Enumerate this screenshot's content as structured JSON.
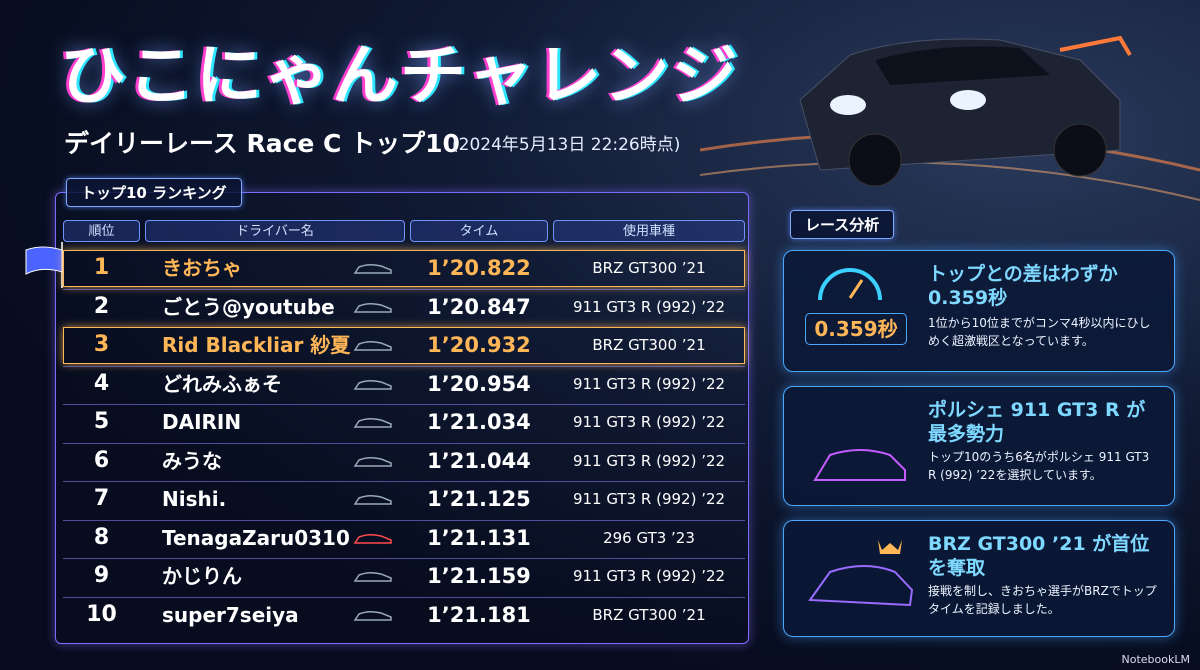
{
  "header": {
    "title": "ひこにゃんチャレンジ",
    "subtitle": "デイリーレース Race C トップ10",
    "date_note": "(2024年5月13日 22:26時点)"
  },
  "ranking": {
    "label": "トップ10 ランキング",
    "headers": [
      "順位",
      "ドライバー名",
      "タイム",
      "使用車種"
    ],
    "rows": [
      {
        "rank": 1,
        "driver": "きおちゃ",
        "time": "1’20.822",
        "car": "BRZ GT300 ’21",
        "highlight": true
      },
      {
        "rank": 2,
        "driver": "ごとう@youtube",
        "time": "1’20.847",
        "car": "911 GT3 R (992) ’22",
        "highlight": false
      },
      {
        "rank": 3,
        "driver": "Rid Blackliar 紗夏",
        "time": "1’20.932",
        "car": "BRZ GT300 ’21",
        "highlight": true
      },
      {
        "rank": 4,
        "driver": "どれみふぁそ",
        "time": "1’20.954",
        "car": "911 GT3 R (992) ’22",
        "highlight": false
      },
      {
        "rank": 5,
        "driver": "DAIRIN",
        "time": "1’21.034",
        "car": "911 GT3 R (992) ’22",
        "highlight": false
      },
      {
        "rank": 6,
        "driver": "みうな",
        "time": "1’21.044",
        "car": "911 GT3 R (992) ’22",
        "highlight": false
      },
      {
        "rank": 7,
        "driver": "Nishi.",
        "time": "1’21.125",
        "car": "911 GT3 R (992) ’22",
        "highlight": false
      },
      {
        "rank": 8,
        "driver": "TenagaZaru0310",
        "time": "1’21.131",
        "car": "296 GT3 ’23",
        "highlight": false
      },
      {
        "rank": 9,
        "driver": "かじりん",
        "time": "1’21.159",
        "car": "911 GT3 R (992) ’22",
        "highlight": false
      },
      {
        "rank": 10,
        "driver": "super7seiya",
        "time": "1’21.181",
        "car": "BRZ GT300 ’21",
        "highlight": false
      }
    ]
  },
  "analysis": {
    "label": "レース分析",
    "cards": [
      {
        "title": "トップとの差はわずか 0.359秒",
        "badge": "0.359秒",
        "body": "1位から10位までがコンマ4秒以内にひしめく超激戦区となっています。"
      },
      {
        "title": "ポルシェ 911 GT3 R が最多勢力",
        "body": "トップ10のうち6名がポルシェ 911 GT3 R (992) ’22を選択しています。"
      },
      {
        "title": "BRZ GT300 ’21 が首位を奪取",
        "body": "接戦を制し、きおちゃ選手がBRZでトップタイムを記録しました。"
      }
    ]
  },
  "footer": "NotebookLM"
}
